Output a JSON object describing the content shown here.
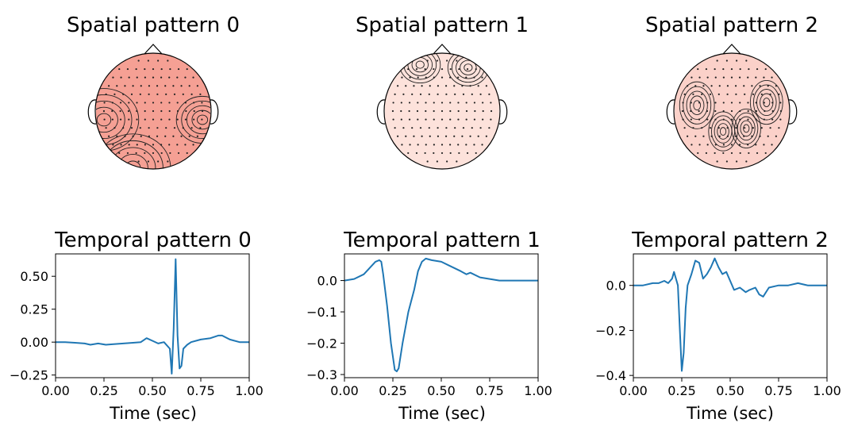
{
  "chart_data": [
    {
      "type": "topomap",
      "title": "Spatial pattern 0",
      "colormap": "Reds",
      "colors": {
        "low": "#fff5f0",
        "mid": "#f07060",
        "high": "#67000d"
      },
      "blobs": [
        {
          "cx": -0.85,
          "cy": 0.15,
          "r": 0.6,
          "level": 0.95
        },
        {
          "cx": -0.35,
          "cy": 0.98,
          "r": 0.65,
          "level": 0.95
        },
        {
          "cx": 0.85,
          "cy": 0.15,
          "r": 0.45,
          "level": 0.45
        }
      ],
      "base_level": 0.35
    },
    {
      "type": "topomap",
      "title": "Spatial pattern 1",
      "colormap": "Reds",
      "colors": {
        "low": "#fff5f0",
        "mid": "#f07060",
        "high": "#67000d"
      },
      "blobs": [
        {
          "cx": -0.38,
          "cy": -0.8,
          "r": 0.35,
          "level": 0.85
        },
        {
          "cx": 0.45,
          "cy": -0.75,
          "r": 0.35,
          "level": 0.95
        }
      ],
      "base_level": 0.08
    },
    {
      "type": "topomap",
      "title": "Spatial pattern 2",
      "colormap": "Reds",
      "colors": {
        "low": "#fff5f0",
        "mid": "#f07060",
        "high": "#67000d"
      },
      "blobs": [
        {
          "cx": -0.6,
          "cy": -0.1,
          "r": 0.3,
          "level": 0.95
        },
        {
          "cx": 0.6,
          "cy": -0.15,
          "r": 0.28,
          "level": 0.9
        },
        {
          "cx": -0.15,
          "cy": 0.35,
          "r": 0.25,
          "level": 0.5
        },
        {
          "cx": 0.25,
          "cy": 0.3,
          "r": 0.25,
          "level": 0.45
        }
      ],
      "base_level": 0.15
    },
    {
      "type": "line",
      "title": "Temporal pattern 0",
      "xlabel": "Time (sec)",
      "ylabel": "",
      "xlim": [
        0,
        1
      ],
      "ylim": [
        -0.27,
        0.67
      ],
      "xticks": [
        "0.00",
        "0.25",
        "0.50",
        "0.75",
        "1.00"
      ],
      "xtick_values": [
        0,
        0.25,
        0.5,
        0.75,
        1
      ],
      "yticks": [
        "−0.25",
        "0.00",
        "0.25",
        "0.50"
      ],
      "ytick_values": [
        -0.25,
        0,
        0.25,
        0.5
      ],
      "x": [
        0,
        0.05,
        0.1,
        0.15,
        0.18,
        0.22,
        0.26,
        0.3,
        0.35,
        0.4,
        0.44,
        0.47,
        0.5,
        0.53,
        0.56,
        0.59,
        0.6,
        0.61,
        0.62,
        0.63,
        0.64,
        0.65,
        0.66,
        0.68,
        0.7,
        0.75,
        0.8,
        0.84,
        0.86,
        0.9,
        0.95,
        1.0
      ],
      "y": [
        0,
        0,
        -0.005,
        -0.01,
        -0.02,
        -0.01,
        -0.02,
        -0.015,
        -0.01,
        -0.005,
        0.0,
        0.03,
        0.01,
        -0.01,
        0.0,
        -0.05,
        -0.24,
        0.1,
        0.63,
        0.05,
        -0.2,
        -0.18,
        -0.05,
        -0.02,
        0.0,
        0.02,
        0.03,
        0.05,
        0.05,
        0.02,
        0.0,
        0.0
      ]
    },
    {
      "type": "line",
      "title": "Temporal pattern 1",
      "xlabel": "Time (sec)",
      "ylabel": "",
      "xlim": [
        0,
        1
      ],
      "ylim": [
        -0.31,
        0.085
      ],
      "xticks": [
        "0.00",
        "0.25",
        "0.50",
        "0.75",
        "1.00"
      ],
      "xtick_values": [
        0,
        0.25,
        0.5,
        0.75,
        1
      ],
      "yticks": [
        "−0.3",
        "−0.2",
        "−0.1",
        "0.0"
      ],
      "ytick_values": [
        -0.3,
        -0.2,
        -0.1,
        0
      ],
      "x": [
        0,
        0.05,
        0.1,
        0.13,
        0.16,
        0.18,
        0.19,
        0.2,
        0.22,
        0.24,
        0.26,
        0.27,
        0.28,
        0.3,
        0.33,
        0.36,
        0.38,
        0.4,
        0.42,
        0.45,
        0.5,
        0.55,
        0.6,
        0.63,
        0.65,
        0.7,
        0.75,
        0.8,
        0.85,
        0.9,
        0.95,
        1.0
      ],
      "y": [
        0,
        0.005,
        0.02,
        0.04,
        0.06,
        0.065,
        0.06,
        0.02,
        -0.08,
        -0.2,
        -0.285,
        -0.29,
        -0.28,
        -0.2,
        -0.1,
        -0.03,
        0.03,
        0.06,
        0.07,
        0.065,
        0.06,
        0.045,
        0.03,
        0.02,
        0.025,
        0.01,
        0.005,
        0.0,
        0.0,
        0.0,
        0.0,
        0.0
      ]
    },
    {
      "type": "line",
      "title": "Temporal pattern 2",
      "xlabel": "Time (sec)",
      "ylabel": "",
      "xlim": [
        0,
        1
      ],
      "ylim": [
        -0.41,
        0.14
      ],
      "xticks": [
        "0.00",
        "0.25",
        "0.50",
        "0.75",
        "1.00"
      ],
      "xtick_values": [
        0,
        0.25,
        0.5,
        0.75,
        1
      ],
      "yticks": [
        "−0.4",
        "−0.2",
        "0.0"
      ],
      "ytick_values": [
        -0.4,
        -0.2,
        0
      ],
      "x": [
        0,
        0.05,
        0.1,
        0.13,
        0.16,
        0.18,
        0.2,
        0.21,
        0.23,
        0.24,
        0.25,
        0.26,
        0.27,
        0.28,
        0.3,
        0.32,
        0.34,
        0.36,
        0.38,
        0.4,
        0.42,
        0.44,
        0.46,
        0.48,
        0.5,
        0.52,
        0.55,
        0.58,
        0.6,
        0.63,
        0.65,
        0.67,
        0.7,
        0.75,
        0.8,
        0.85,
        0.9,
        0.95,
        1.0
      ],
      "y": [
        0,
        0.0,
        0.01,
        0.01,
        0.02,
        0.01,
        0.03,
        0.06,
        0.0,
        -0.2,
        -0.38,
        -0.3,
        -0.1,
        0.0,
        0.05,
        0.11,
        0.1,
        0.03,
        0.05,
        0.08,
        0.12,
        0.08,
        0.05,
        0.06,
        0.02,
        -0.02,
        -0.01,
        -0.03,
        -0.02,
        -0.01,
        -0.04,
        -0.05,
        -0.01,
        0.0,
        0.0,
        0.01,
        0.0,
        0.0,
        0.0
      ]
    }
  ]
}
